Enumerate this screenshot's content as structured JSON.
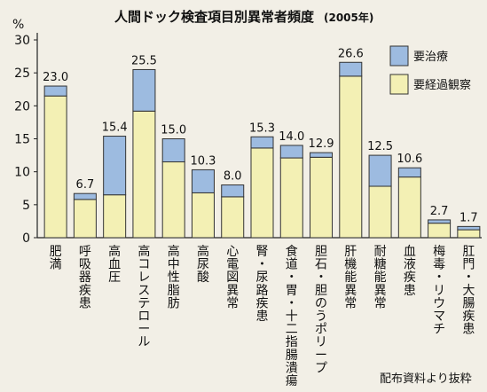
{
  "chart_data": {
    "type": "bar",
    "stacked": true,
    "title": "人間ドック検査項目別異常者頻度",
    "subtitle": "(2005年)",
    "ylabel": "%",
    "ylim": [
      0,
      30
    ],
    "yticks": [
      0,
      5,
      10,
      15,
      20,
      25,
      30
    ],
    "categories": [
      "肥満",
      "呼吸器疾患",
      "高血圧",
      "高コレステロール",
      "高中性脂肪",
      "高尿酸",
      "心電図異常",
      "腎・尿路疾患",
      "食道・胃・十二指腸潰瘍",
      "胆石・胆のうポリープ",
      "肝機能異常",
      "耐糖能異常",
      "血液疾患",
      "梅毒・リウマチ",
      "肛門・大腸疾患"
    ],
    "totals": [
      "23.0",
      "6.7",
      "15.4",
      "25.5",
      "15.0",
      "10.3",
      "8.0",
      "15.3",
      "14.0",
      "12.9",
      "26.6",
      "12.5",
      "10.6",
      "2.7",
      "1.7"
    ],
    "series": [
      {
        "name": "要経過観察",
        "color": "#f3f0b4",
        "values": [
          21.5,
          5.8,
          6.5,
          19.2,
          11.5,
          6.8,
          6.2,
          13.6,
          12.1,
          12.2,
          24.5,
          7.8,
          9.2,
          2.2,
          1.2
        ]
      },
      {
        "name": "要治療",
        "color": "#9dbbe0",
        "values": [
          1.5,
          0.9,
          8.9,
          6.3,
          3.5,
          3.5,
          1.8,
          1.7,
          1.9,
          0.7,
          2.1,
          4.7,
          1.4,
          0.5,
          0.5
        ]
      }
    ],
    "legend_position": "top-right",
    "grid": false
  },
  "source_note": "配布資料より抜粋"
}
